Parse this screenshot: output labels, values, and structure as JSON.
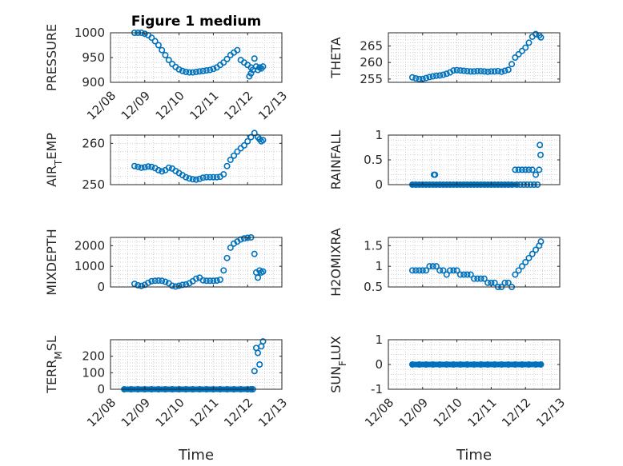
{
  "figure_title": "Figure 1 medium",
  "colors": {
    "marker": "#0072BD",
    "axes": "#262626",
    "grid": "#c8c8c8"
  },
  "chart_data": [
    {
      "type": "scatter",
      "ylabel": "PRESSURE",
      "title": "Figure 1 medium",
      "ylim": [
        900,
        1000
      ],
      "yticks": [
        900,
        950,
        1000
      ],
      "ytick_labels": [
        "900",
        "950",
        "1000"
      ],
      "xlim": [
        "12/08",
        "12/13"
      ],
      "xtick_labels": [
        "12/08",
        "12/09",
        "12/10",
        "12/11",
        "12/12",
        "12/13"
      ],
      "xlabel": "",
      "grid": true,
      "x": [
        0.7,
        0.8,
        0.9,
        1.0,
        1.1,
        1.2,
        1.3,
        1.4,
        1.5,
        1.6,
        1.7,
        1.8,
        1.9,
        2.0,
        2.1,
        2.2,
        2.3,
        2.4,
        2.5,
        2.6,
        2.7,
        2.8,
        2.9,
        3.0,
        3.1,
        3.2,
        3.3,
        3.4,
        3.5,
        3.6,
        3.7,
        3.8,
        3.9,
        4.0,
        4.1,
        4.05,
        4.1,
        4.15,
        4.2,
        4.25,
        4.3,
        4.35,
        4.4,
        4.45
      ],
      "y": [
        1000,
        1000,
        1000,
        998,
        995,
        990,
        983,
        975,
        965,
        955,
        945,
        937,
        931,
        926,
        923,
        921,
        920,
        920,
        921,
        922,
        923,
        924,
        925,
        927,
        930,
        935,
        940,
        947,
        955,
        960,
        965,
        945,
        940,
        935,
        930,
        912,
        918,
        925,
        948,
        932,
        925,
        930,
        928,
        932
      ]
    },
    {
      "type": "scatter",
      "ylabel": "THETA",
      "ylim": [
        254,
        269
      ],
      "yticks": [
        255,
        260,
        265
      ],
      "ytick_labels": [
        "255",
        "260",
        "265"
      ],
      "xlim": [
        "12/08",
        "12/13"
      ],
      "xtick_labels": [],
      "xlabel": "",
      "grid": true,
      "x": [
        0.7,
        0.8,
        0.9,
        1.0,
        1.1,
        1.2,
        1.3,
        1.4,
        1.5,
        1.6,
        1.7,
        1.8,
        1.9,
        2.0,
        2.1,
        2.2,
        2.3,
        2.4,
        2.5,
        2.6,
        2.7,
        2.8,
        2.9,
        3.0,
        3.1,
        3.2,
        3.3,
        3.4,
        3.5,
        3.6,
        3.7,
        3.8,
        3.9,
        4.0,
        4.1,
        4.2,
        4.3,
        4.4,
        4.45
      ],
      "y": [
        255.5,
        255.2,
        255,
        255,
        255.3,
        255.6,
        255.8,
        256,
        256.1,
        256.3,
        256.6,
        257,
        257.6,
        257.7,
        257.6,
        257.5,
        257.4,
        257.3,
        257.3,
        257.4,
        257.4,
        257.3,
        257.2,
        257.3,
        257.3,
        257.4,
        257.2,
        257.5,
        257.8,
        259.5,
        261.5,
        262.5,
        263.5,
        264.5,
        266,
        267.8,
        268.6,
        268.2,
        267.6
      ]
    },
    {
      "type": "scatter",
      "ylabel": "AIR_TEMP",
      "ylim": [
        250,
        262
      ],
      "yticks": [
        250,
        260
      ],
      "ytick_labels": [
        "250",
        "260"
      ],
      "xlim": [
        "12/08",
        "12/13"
      ],
      "xtick_labels": [],
      "xlabel": "",
      "grid": true,
      "x": [
        0.7,
        0.8,
        0.9,
        1.0,
        1.1,
        1.2,
        1.3,
        1.4,
        1.5,
        1.6,
        1.7,
        1.8,
        1.9,
        2.0,
        2.1,
        2.2,
        2.3,
        2.4,
        2.5,
        2.6,
        2.7,
        2.8,
        2.9,
        3.0,
        3.1,
        3.2,
        3.3,
        3.4,
        3.5,
        3.6,
        3.7,
        3.8,
        3.9,
        4.0,
        4.1,
        4.2,
        4.3,
        4.35,
        4.4,
        4.45
      ],
      "y": [
        254.5,
        254.3,
        254.1,
        254.2,
        254.4,
        254.3,
        254,
        253.5,
        253.2,
        253.5,
        254.1,
        253.9,
        253.3,
        252.8,
        252.3,
        251.8,
        251.5,
        251.3,
        251.2,
        251.4,
        251.7,
        251.8,
        251.8,
        251.8,
        251.8,
        251.9,
        252.5,
        254.5,
        256,
        257,
        258,
        258.8,
        259.5,
        260.5,
        261.5,
        262.5,
        261.5,
        261,
        260.5,
        260.8
      ]
    },
    {
      "type": "scatter",
      "ylabel": "RAINFALL",
      "ylim": [
        0,
        1
      ],
      "yticks": [
        0,
        0.5,
        1
      ],
      "ytick_labels": [
        "0",
        "0.5",
        "1"
      ],
      "xlim": [
        "12/08",
        "12/13"
      ],
      "xtick_labels": [],
      "xlabel": "",
      "grid": true,
      "x": [
        0.7,
        0.8,
        0.9,
        1.0,
        1.1,
        1.2,
        1.3,
        1.33,
        1.36,
        1.4,
        1.5,
        1.6,
        1.7,
        1.8,
        1.9,
        2.0,
        2.1,
        2.2,
        2.3,
        2.4,
        2.5,
        2.6,
        2.7,
        2.8,
        2.9,
        3.0,
        3.1,
        3.2,
        3.3,
        3.4,
        3.5,
        3.6,
        3.7,
        3.75,
        3.8,
        3.85,
        3.9,
        3.95,
        4.0,
        4.05,
        4.1,
        4.15,
        4.2,
        4.25,
        4.3,
        4.35,
        4.4,
        4.42,
        4.44
      ],
      "y": [
        0,
        0,
        0,
        0,
        0,
        0,
        0,
        0.2,
        0.2,
        0,
        0,
        0,
        0,
        0,
        0,
        0,
        0,
        0,
        0,
        0,
        0,
        0,
        0,
        0,
        0,
        0,
        0,
        0,
        0,
        0,
        0,
        0,
        0.3,
        0,
        0.3,
        0,
        0.3,
        0,
        0.3,
        0,
        0.3,
        0,
        0.3,
        0,
        0.2,
        0,
        0.3,
        0.8,
        0.6
      ]
    },
    {
      "type": "scatter",
      "ylabel": "MIXDEPTH",
      "ylim": [
        0,
        2400
      ],
      "yticks": [
        0,
        1000,
        2000
      ],
      "ytick_labels": [
        "0",
        "1000",
        "2000"
      ],
      "xlim": [
        "12/08",
        "12/13"
      ],
      "xtick_labels": [],
      "xlabel": "",
      "grid": true,
      "x": [
        0.7,
        0.8,
        0.9,
        1.0,
        1.1,
        1.2,
        1.3,
        1.4,
        1.5,
        1.6,
        1.7,
        1.8,
        1.9,
        2.0,
        2.1,
        2.2,
        2.3,
        2.4,
        2.5,
        2.6,
        2.7,
        2.8,
        2.9,
        3.0,
        3.1,
        3.2,
        3.3,
        3.4,
        3.5,
        3.6,
        3.7,
        3.8,
        3.9,
        4.0,
        4.1,
        4.2,
        4.25,
        4.3,
        4.35,
        4.4,
        4.45
      ],
      "y": [
        150,
        80,
        50,
        100,
        200,
        280,
        300,
        310,
        300,
        250,
        180,
        60,
        20,
        60,
        100,
        120,
        180,
        280,
        400,
        450,
        320,
        300,
        300,
        300,
        310,
        350,
        800,
        1400,
        1900,
        2100,
        2200,
        2300,
        2350,
        2380,
        2400,
        1600,
        700,
        450,
        800,
        700,
        750
      ]
    },
    {
      "type": "scatter",
      "ylabel": "H2OMIXRA",
      "ylim": [
        0.5,
        1.7
      ],
      "yticks": [
        0.5,
        1,
        1.5
      ],
      "ytick_labels": [
        "0.5",
        "1",
        "1.5"
      ],
      "xlim": [
        "12/08",
        "12/13"
      ],
      "xtick_labels": [],
      "xlabel": "",
      "grid": true,
      "x": [
        0.7,
        0.8,
        0.9,
        1.0,
        1.1,
        1.2,
        1.3,
        1.4,
        1.5,
        1.6,
        1.7,
        1.8,
        1.9,
        2.0,
        2.1,
        2.2,
        2.3,
        2.4,
        2.5,
        2.6,
        2.7,
        2.8,
        2.9,
        3.0,
        3.1,
        3.2,
        3.3,
        3.4,
        3.5,
        3.6,
        3.7,
        3.8,
        3.9,
        4.0,
        4.1,
        4.2,
        4.3,
        4.4,
        4.45
      ],
      "y": [
        0.9,
        0.9,
        0.9,
        0.9,
        0.9,
        1.0,
        1.0,
        1.0,
        0.9,
        0.9,
        0.8,
        0.9,
        0.9,
        0.9,
        0.8,
        0.8,
        0.8,
        0.8,
        0.7,
        0.7,
        0.7,
        0.7,
        0.6,
        0.6,
        0.6,
        0.5,
        0.5,
        0.6,
        0.6,
        0.5,
        0.8,
        0.9,
        1.0,
        1.1,
        1.2,
        1.3,
        1.4,
        1.5,
        1.6
      ]
    },
    {
      "type": "scatter",
      "ylabel": "TERR_MSL",
      "ylim": [
        0,
        300
      ],
      "yticks": [
        0,
        100,
        200
      ],
      "ytick_labels": [
        "0",
        "100",
        "200"
      ],
      "xlim": [
        "12/08",
        "12/13"
      ],
      "xtick_labels": [
        "12/08",
        "12/09",
        "12/10",
        "12/11",
        "12/12",
        "12/13"
      ],
      "xlabel": "Time",
      "grid": true,
      "x": [
        0.4,
        0.6,
        0.8,
        1.0,
        1.2,
        1.4,
        1.6,
        1.8,
        2.0,
        2.2,
        2.4,
        2.6,
        2.8,
        3.0,
        3.2,
        3.4,
        3.6,
        3.8,
        4.0,
        4.1,
        4.15,
        4.2,
        4.25,
        4.3,
        4.35,
        4.4,
        4.45
      ],
      "y": [
        0,
        0,
        0,
        0,
        0,
        0,
        0,
        0,
        0,
        0,
        0,
        0,
        0,
        0,
        0,
        0,
        0,
        0,
        0,
        0,
        0,
        110,
        250,
        220,
        150,
        260,
        290
      ]
    },
    {
      "type": "scatter",
      "ylabel": "SUN_FLUX",
      "ylim": [
        -1,
        1
      ],
      "yticks": [
        -1,
        0,
        1
      ],
      "ytick_labels": [
        "-1",
        "0",
        "1"
      ],
      "xlim": [
        "12/08",
        "12/13"
      ],
      "xtick_labels": [
        "12/08",
        "12/09",
        "12/10",
        "12/11",
        "12/12",
        "12/13"
      ],
      "xlabel": "Time",
      "grid": true,
      "x": [
        0.7,
        0.9,
        1.1,
        1.3,
        1.5,
        1.7,
        1.9,
        2.1,
        2.3,
        2.5,
        2.7,
        2.9,
        3.1,
        3.3,
        3.5,
        3.7,
        3.9,
        4.1,
        4.3,
        4.45
      ],
      "y": [
        0,
        0,
        0,
        0,
        0,
        0,
        0,
        0,
        0,
        0,
        0,
        0,
        0,
        0,
        0,
        0,
        0,
        0,
        0,
        0
      ]
    }
  ]
}
